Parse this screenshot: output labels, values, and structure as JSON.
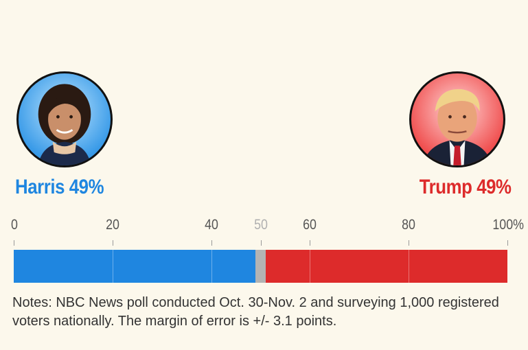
{
  "candidates": {
    "harris": {
      "label": "Harris 49%",
      "color": "#1f86e0"
    },
    "trump": {
      "label": "Trump 49%",
      "color": "#dd2b2b"
    }
  },
  "notes": "Notes: NBC News poll conducted Oct. 30-Nov. 2 and surveying 1,000 registered voters nationally. The margin of error is +/- 3.1 points.",
  "chart_data": {
    "type": "bar",
    "orientation": "horizontal-stacked",
    "series": [
      {
        "name": "Harris",
        "value": 49,
        "color": "#1f86e0"
      },
      {
        "name": "",
        "value": 2,
        "color": "#b3b3b3"
      },
      {
        "name": "Trump",
        "value": 49,
        "color": "#dd2b2b"
      }
    ],
    "xlim": [
      0,
      100
    ],
    "ticks": [
      {
        "value": 0,
        "label": "0"
      },
      {
        "value": 20,
        "label": "20"
      },
      {
        "value": 40,
        "label": "40"
      },
      {
        "value": 50,
        "label": "50"
      },
      {
        "value": 60,
        "label": "60"
      },
      {
        "value": 80,
        "label": "80"
      },
      {
        "value": 100,
        "label": "100%"
      }
    ],
    "midpoint_tick_color": "#b0b0b0"
  }
}
